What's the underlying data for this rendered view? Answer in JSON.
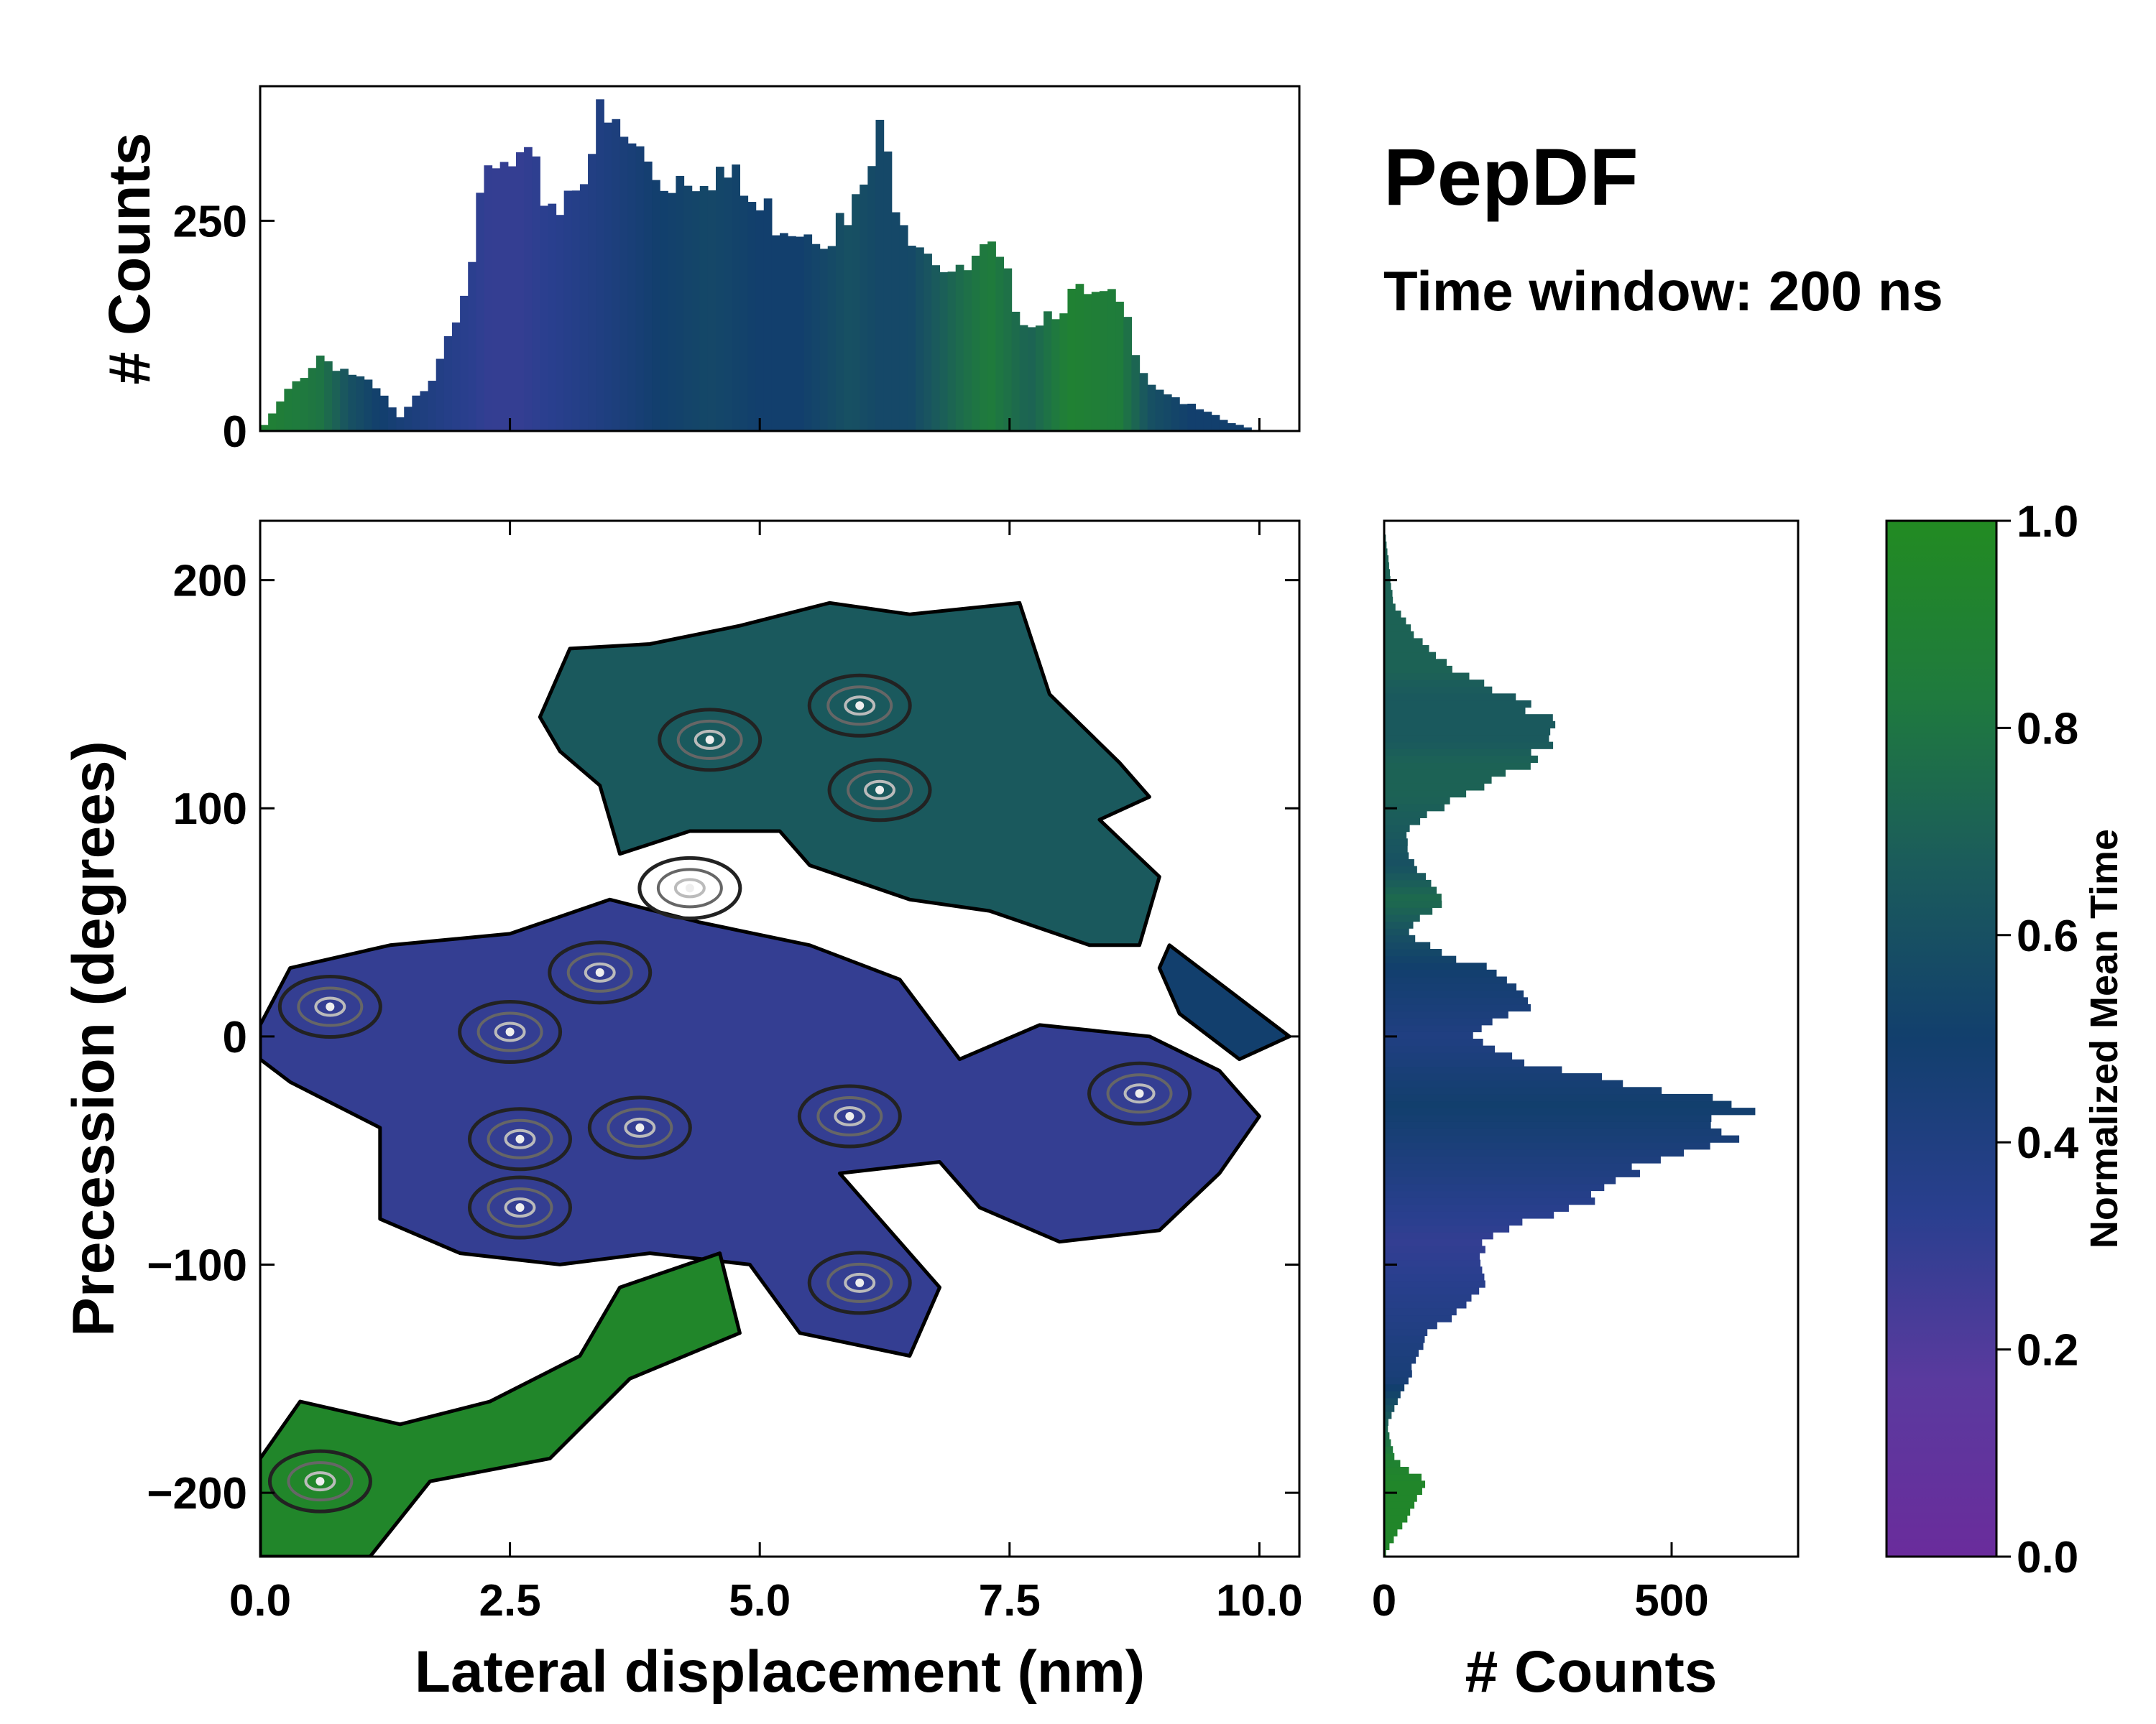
{
  "chart_data": {
    "type": "heatmap",
    "title": "PepDF",
    "subtitle": "Time window: 200 ns",
    "main": {
      "xlabel": "Lateral displacement (nm)",
      "ylabel": "Precession (degrees)",
      "xlim": [
        0,
        10.4
      ],
      "ylim": [
        -228,
        226
      ],
      "xticks": [
        0,
        2.5,
        5,
        7.5,
        10
      ],
      "xtick_labels": [
        "0.0",
        "2.5",
        "5.0",
        "7.5",
        "10.0"
      ],
      "yticks": [
        200,
        100,
        0,
        -100,
        -200
      ],
      "ytick_labels": [
        "200",
        "100",
        "0",
        "−100",
        "−200"
      ],
      "regions": [
        {
          "name": "upper-lobe",
          "outline": [
            [
              2.8,
              140
            ],
            [
              3.1,
              170
            ],
            [
              3.9,
              172
            ],
            [
              4.8,
              180
            ],
            [
              5.7,
              190
            ],
            [
              6.5,
              185
            ],
            [
              7.6,
              190
            ],
            [
              7.9,
              150
            ],
            [
              8.6,
              120
            ],
            [
              8.9,
              105
            ],
            [
              8.4,
              95
            ],
            [
              9.0,
              70
            ],
            [
              8.8,
              40
            ],
            [
              8.3,
              40
            ],
            [
              7.3,
              55
            ],
            [
              6.5,
              60
            ],
            [
              5.5,
              75
            ],
            [
              5.2,
              90
            ],
            [
              4.3,
              90
            ],
            [
              3.6,
              80
            ],
            [
              3.4,
              110
            ],
            [
              3.0,
              125
            ]
          ],
          "intensity": 0.65
        },
        {
          "name": "middle-band",
          "outline": [
            [
              0.0,
              5
            ],
            [
              0.3,
              30
            ],
            [
              1.3,
              40
            ],
            [
              2.5,
              45
            ],
            [
              3.5,
              60
            ],
            [
              4.4,
              50
            ],
            [
              5.5,
              40
            ],
            [
              6.4,
              25
            ],
            [
              7.0,
              -10
            ],
            [
              7.8,
              5
            ],
            [
              8.9,
              0
            ],
            [
              9.6,
              -15
            ],
            [
              10.0,
              -35
            ],
            [
              9.6,
              -60
            ],
            [
              9.0,
              -85
            ],
            [
              8.0,
              -90
            ],
            [
              7.2,
              -75
            ],
            [
              6.8,
              -55
            ],
            [
              5.8,
              -60
            ],
            [
              6.8,
              -110
            ],
            [
              6.5,
              -140
            ],
            [
              5.4,
              -130
            ],
            [
              4.9,
              -100
            ],
            [
              3.9,
              -95
            ],
            [
              3.0,
              -100
            ],
            [
              2.0,
              -95
            ],
            [
              1.2,
              -80
            ],
            [
              1.2,
              -40
            ],
            [
              0.3,
              -20
            ],
            [
              0.0,
              -10
            ]
          ],
          "intensity": 0.3
        },
        {
          "name": "lower-tail",
          "outline": [
            [
              0.0,
              -185
            ],
            [
              0.4,
              -160
            ],
            [
              1.4,
              -170
            ],
            [
              2.3,
              -160
            ],
            [
              3.2,
              -140
            ],
            [
              3.6,
              -110
            ],
            [
              4.6,
              -95
            ],
            [
              4.8,
              -130
            ],
            [
              3.7,
              -150
            ],
            [
              2.9,
              -185
            ],
            [
              1.7,
              -195
            ],
            [
              1.1,
              -228
            ],
            [
              0.0,
              -228
            ]
          ],
          "intensity": 0.95
        },
        {
          "name": "right-tail",
          "outline": [
            [
              9.1,
              40
            ],
            [
              9.7,
              20
            ],
            [
              10.3,
              0
            ],
            [
              9.8,
              -10
            ],
            [
              9.2,
              10
            ],
            [
              9.0,
              30
            ]
          ],
          "intensity": 0.5
        }
      ],
      "hotspots": [
        {
          "x": 3.4,
          "y": 28
        },
        {
          "x": 2.5,
          "y": 2
        },
        {
          "x": 2.6,
          "y": -45
        },
        {
          "x": 2.6,
          "y": -75
        },
        {
          "x": 3.8,
          "y": -40
        },
        {
          "x": 5.9,
          "y": -35
        },
        {
          "x": 6.0,
          "y": -108
        },
        {
          "x": 6.2,
          "y": 108
        },
        {
          "x": 4.5,
          "y": 130
        },
        {
          "x": 6.0,
          "y": 145
        },
        {
          "x": 8.8,
          "y": -25
        },
        {
          "x": 0.7,
          "y": 13
        },
        {
          "x": 0.6,
          "y": -195
        },
        {
          "x": 4.3,
          "y": 65
        }
      ]
    },
    "top_hist": {
      "ylabel": "# Counts",
      "ylim": [
        0,
        410
      ],
      "yticks": [
        0,
        250
      ],
      "ytick_labels": [
        "0",
        "250"
      ],
      "profile_x": [
        0.0,
        0.3,
        0.6,
        0.9,
        1.2,
        1.4,
        1.7,
        2.0,
        2.3,
        2.6,
        3.0,
        3.4,
        3.7,
        4.0,
        4.5,
        5.0,
        5.4,
        5.9,
        6.2,
        6.5,
        7.0,
        7.3,
        7.7,
        8.1,
        8.6,
        8.9,
        9.3,
        9.7,
        10.0,
        10.4
      ],
      "profile_counts": [
        0,
        50,
        90,
        70,
        45,
        15,
        60,
        160,
        300,
        310,
        270,
        360,
        340,
        300,
        320,
        260,
        250,
        240,
        340,
        250,
        180,
        210,
        130,
        160,
        150,
        60,
        30,
        10,
        0,
        0
      ],
      "time_profile": [
        0.9,
        0.85,
        0.8,
        0.6,
        0.5,
        0.45,
        0.4,
        0.35,
        0.3,
        0.3,
        0.35,
        0.4,
        0.45,
        0.5,
        0.55,
        0.5,
        0.5,
        0.6,
        0.55,
        0.55,
        0.75,
        0.85,
        0.7,
        0.9,
        0.85,
        0.6,
        0.5,
        0.5,
        0.5,
        0.5
      ]
    },
    "right_hist": {
      "xlabel": "# Counts",
      "xlim": [
        0,
        720
      ],
      "xticks": [
        0,
        500
      ],
      "xtick_labels": [
        "0",
        "500"
      ],
      "profile_y": [
        -228,
        -210,
        -195,
        -185,
        -170,
        -150,
        -130,
        -110,
        -90,
        -75,
        -60,
        -45,
        -30,
        -15,
        0,
        15,
        30,
        45,
        60,
        75,
        90,
        105,
        120,
        130,
        140,
        150,
        160,
        175,
        190,
        226
      ],
      "profile_counts": [
        0,
        40,
        70,
        20,
        5,
        40,
        80,
        170,
        180,
        320,
        420,
        650,
        600,
        300,
        160,
        250,
        170,
        40,
        100,
        50,
        40,
        120,
        250,
        310,
        300,
        200,
        120,
        60,
        15,
        0
      ],
      "time_profile": [
        0.95,
        0.95,
        0.95,
        0.9,
        0.7,
        0.45,
        0.4,
        0.35,
        0.3,
        0.35,
        0.4,
        0.45,
        0.5,
        0.45,
        0.4,
        0.45,
        0.5,
        0.6,
        0.75,
        0.6,
        0.65,
        0.7,
        0.7,
        0.65,
        0.65,
        0.65,
        0.7,
        0.7,
        0.7,
        0.7
      ]
    },
    "colorbar": {
      "label": "Normalized Mean Time",
      "range": [
        0,
        1
      ],
      "ticks": [
        0,
        0.2,
        0.4,
        0.6,
        0.8,
        1.0
      ],
      "tick_labels": [
        "0.0",
        "0.2",
        "0.4",
        "0.6",
        "0.8",
        "1.0"
      ],
      "colormap": [
        "#6a2c9c",
        "#5a3a9e",
        "#2a3f8f",
        "#123f6d",
        "#1b5c5b",
        "#1f7a3e",
        "#228b22"
      ]
    }
  }
}
